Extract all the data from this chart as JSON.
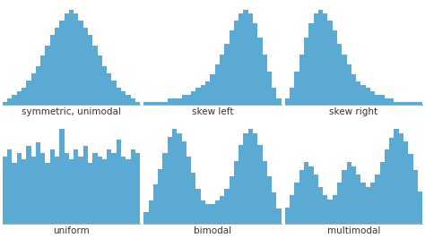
{
  "bar_color": "#5baad4",
  "background_color": "#ffffff",
  "label_fontsize": 7.5,
  "labels": [
    "symmetric, unimodal",
    "skew left",
    "skew right",
    "uniform",
    "bimodal",
    "multimodal"
  ],
  "symmetric_unimodal": [
    1,
    2,
    3,
    4,
    5,
    7,
    9,
    11,
    14,
    17,
    20,
    22,
    24,
    26,
    27,
    26,
    24,
    22,
    20,
    17,
    14,
    11,
    9,
    7,
    5,
    4,
    3,
    2,
    1
  ],
  "skew_left": [
    1,
    1,
    1,
    1,
    1,
    2,
    2,
    2,
    3,
    3,
    4,
    5,
    6,
    7,
    9,
    12,
    15,
    18,
    22,
    25,
    27,
    28,
    27,
    24,
    20,
    15,
    10,
    5,
    2
  ],
  "skew_right": [
    2,
    5,
    10,
    15,
    20,
    24,
    27,
    28,
    27,
    25,
    22,
    18,
    15,
    12,
    9,
    7,
    6,
    5,
    4,
    3,
    3,
    2,
    2,
    1,
    1,
    1,
    1,
    1,
    1
  ],
  "uniform": [
    20,
    22,
    18,
    21,
    19,
    23,
    20,
    24,
    21,
    18,
    22,
    20,
    28,
    21,
    19,
    22,
    20,
    23,
    18,
    21,
    20,
    19,
    22,
    21,
    25,
    20,
    19,
    22,
    21
  ],
  "bimodal": [
    3,
    6,
    10,
    14,
    18,
    22,
    24,
    23,
    21,
    17,
    13,
    9,
    6,
    5,
    5,
    6,
    7,
    9,
    12,
    16,
    20,
    23,
    24,
    23,
    20,
    16,
    12,
    8,
    4
  ],
  "multimodal": [
    4,
    7,
    10,
    13,
    15,
    14,
    12,
    9,
    7,
    6,
    7,
    10,
    13,
    15,
    14,
    12,
    10,
    9,
    10,
    12,
    15,
    18,
    21,
    23,
    22,
    20,
    17,
    13,
    8
  ]
}
